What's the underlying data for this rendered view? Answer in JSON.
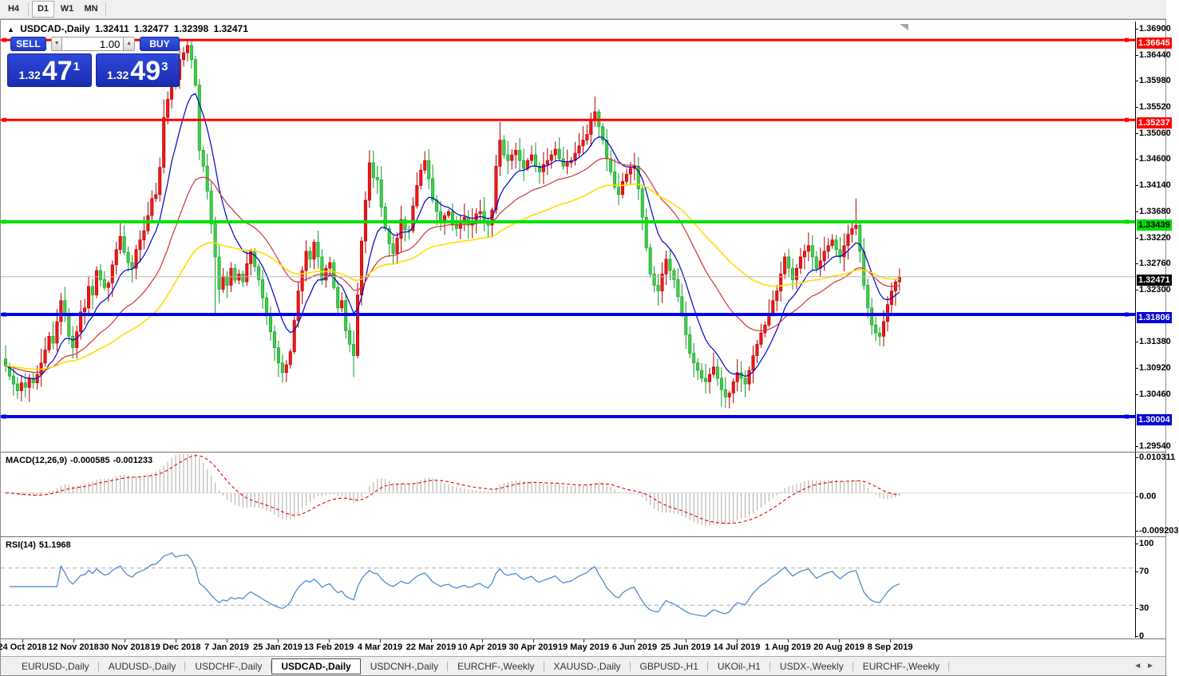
{
  "toolbar": {
    "timeframes": [
      {
        "label": "H4",
        "active": false
      },
      {
        "label": "D1",
        "active": true
      },
      {
        "label": "W1",
        "active": false
      },
      {
        "label": "MN",
        "active": false
      }
    ]
  },
  "icons": {
    "collapse": "▲",
    "spinner_down": "▼",
    "spinner_up": "▲",
    "nav_left": "◄",
    "nav_right": "►"
  },
  "chart_title": {
    "symbol": "USDCAD-,Daily",
    "open": "1.32411",
    "high": "1.32477",
    "low": "1.32398",
    "close": "1.32471"
  },
  "order_panel": {
    "sell_label": "SELL",
    "buy_label": "BUY",
    "volume": "1.00",
    "sell_price": {
      "prefix": "1.32",
      "big": "47",
      "sup": "1"
    },
    "buy_price": {
      "prefix": "1.32",
      "big": "49",
      "sup": "3"
    }
  },
  "price_axis": {
    "labels": [
      "1.36900",
      "1.36440",
      "1.35980",
      "1.35520",
      "1.35060",
      "1.34600",
      "1.34140",
      "1.33680",
      "1.33220",
      "1.32760",
      "1.32300",
      "1.31380",
      "1.30920",
      "1.30460",
      "1.29540"
    ],
    "special": [
      {
        "value": "1.36645",
        "price": 1.36645,
        "bg": "#FF0000",
        "fg": "#FFFFFF"
      },
      {
        "value": "1.35237",
        "price": 1.35237,
        "bg": "#FF0000",
        "fg": "#FFFFFF"
      },
      {
        "value": "1.33439",
        "price": 1.33439,
        "bg": "#00DC00",
        "fg": "#000000"
      },
      {
        "value": "1.32471",
        "price": 1.32471,
        "bg": "#000000",
        "fg": "#FFFFFF"
      },
      {
        "value": "1.31806",
        "price": 1.31806,
        "bg": "#0000D8",
        "fg": "#FFFFFF"
      },
      {
        "value": "1.30004",
        "price": 1.30004,
        "bg": "#0000D8",
        "fg": "#FFFFFF"
      }
    ]
  },
  "levels": [
    {
      "price": 1.36645,
      "color": "#FF0000",
      "width": 3,
      "handles": true
    },
    {
      "price": 1.35237,
      "color": "#FF0000",
      "width": 3,
      "handles": true
    },
    {
      "price": 1.33439,
      "color": "#00E000",
      "width": 4,
      "handles": true
    },
    {
      "price": 1.31806,
      "color": "#0000E8",
      "width": 4,
      "handles": true
    },
    {
      "price": 1.30004,
      "color": "#0000E8",
      "width": 4,
      "handles": true
    },
    {
      "price": 1.32471,
      "color": "#B8B8B8",
      "width": 1,
      "handles": false
    }
  ],
  "chart_data": {
    "type": "candlestick",
    "symbol": "USDCAD-",
    "timeframe": "Daily",
    "price_range": {
      "top": 1.369,
      "bottom": 1.2954
    },
    "up_color": "#F21515",
    "up_border": "#B00000",
    "down_color": "#3FCE45",
    "down_border": "#109928",
    "moving_averages": [
      {
        "period": 10,
        "color": "#0000C8"
      },
      {
        "period": 30,
        "color": "#D23434"
      },
      {
        "period": 65,
        "color": "#FFDD00"
      }
    ],
    "x_labels": [
      "24 Oct 2018",
      "12 Nov 2018",
      "30 Nov 2018",
      "19 Dec 2018",
      "7 Jan 2019",
      "25 Jan 2019",
      "13 Feb 2019",
      "4 Mar 2019",
      "22 Mar 2019",
      "10 Apr 2019",
      "30 Apr 2019",
      "19 May 2019",
      "6 Jun 2019",
      "25 Jun 2019",
      "14 Jul 2019",
      "1 Aug 2019",
      "20 Aug 2019",
      "8 Sep 2019"
    ],
    "closes": [
      1.309,
      1.3072,
      1.3058,
      1.3046,
      1.306,
      1.3052,
      1.3068,
      1.306,
      1.3075,
      1.3095,
      1.3118,
      1.3142,
      1.313,
      1.3168,
      1.3205,
      1.3178,
      1.3142,
      1.3122,
      1.315,
      1.3185,
      1.3192,
      1.323,
      1.3215,
      1.3258,
      1.3242,
      1.3228,
      1.3236,
      1.3268,
      1.3295,
      1.3318,
      1.329,
      1.3272,
      1.3262,
      1.3295,
      1.3312,
      1.3328,
      1.3355,
      1.3385,
      1.3392,
      1.344,
      1.3528,
      1.356,
      1.3618,
      1.3595,
      1.363,
      1.3642,
      1.3655,
      1.363,
      1.3585,
      1.347,
      1.3442,
      1.3398,
      1.334,
      1.3282,
      1.3225,
      1.3248,
      1.3232,
      1.3262,
      1.3241,
      1.3252,
      1.3238,
      1.327,
      1.3292,
      1.3265,
      1.3242,
      1.321,
      1.3182,
      1.315,
      1.3122,
      1.3095,
      1.3078,
      1.3092,
      1.3115,
      1.317,
      1.3222,
      1.3258,
      1.3292,
      1.3278,
      1.3308,
      1.3282,
      1.3241,
      1.3262,
      1.3272,
      1.3228,
      1.3192,
      1.3205,
      1.3152,
      1.3128,
      1.3108,
      1.3215,
      1.331,
      1.3382,
      1.3448,
      1.3422,
      1.3418,
      1.337,
      1.3332,
      1.3305,
      1.3288,
      1.3315,
      1.3348,
      1.333,
      1.3328,
      1.3372,
      1.3408,
      1.3435,
      1.3452,
      1.342,
      1.3382,
      1.3362,
      1.3342,
      1.3355,
      1.3362,
      1.334,
      1.3332,
      1.3342,
      1.3352,
      1.3338,
      1.3342,
      1.3358,
      1.3362,
      1.3345,
      1.3338,
      1.3365,
      1.3442,
      1.3488,
      1.3462,
      1.3452,
      1.3462,
      1.347,
      1.3452,
      1.3438,
      1.3452,
      1.3462,
      1.3442,
      1.3432,
      1.3445,
      1.3452,
      1.3462,
      1.3472,
      1.3455,
      1.3442,
      1.3448,
      1.3452,
      1.3465,
      1.3478,
      1.3488,
      1.3498,
      1.3522,
      1.3538,
      1.3512,
      1.3488,
      1.3455,
      1.3432,
      1.3405,
      1.3392,
      1.3415,
      1.3428,
      1.3438,
      1.3442,
      1.3402,
      1.3352,
      1.3298,
      1.3252,
      1.3232,
      1.3222,
      1.3252,
      1.3278,
      1.3258,
      1.3242,
      1.3212,
      1.3182,
      1.3145,
      1.3112,
      1.3095,
      1.3082,
      1.3068,
      1.3062,
      1.3075,
      1.3088,
      1.3068,
      1.3048,
      1.3035,
      1.3042,
      1.3062,
      1.3078,
      1.3068,
      1.3058,
      1.3082,
      1.3108,
      1.3128,
      1.3148,
      1.3162,
      1.3182,
      1.3205,
      1.3222,
      1.3252,
      1.3282,
      1.3262,
      1.3242,
      1.3262,
      1.3282,
      1.3292,
      1.3302,
      1.3282,
      1.3262,
      1.3275,
      1.3292,
      1.3302,
      1.3312,
      1.3295,
      1.3282,
      1.3302,
      1.3322,
      1.3332,
      1.3338,
      1.3292,
      1.3232,
      1.3192,
      1.3162,
      1.3148,
      1.3142,
      1.3168,
      1.3198,
      1.3222,
      1.3238,
      1.3247
    ],
    "wick_overrides": {
      "3": {
        "l": 1.3032
      },
      "40": {
        "h": 1.356
      },
      "46": {
        "h": 1.36645
      },
      "53": {
        "l": 1.318
      },
      "70": {
        "l": 1.306
      },
      "88": {
        "l": 1.307
      },
      "92": {
        "h": 1.347
      },
      "125": {
        "h": 1.352
      },
      "149": {
        "h": 1.3565
      },
      "181": {
        "l": 1.3018
      },
      "183": {
        "l": 1.3015
      },
      "215": {
        "h": 1.3385
      },
      "221": {
        "l": 1.3125
      }
    }
  },
  "macd_panel": {
    "label": "MACD(12,26,9)",
    "value1": "-0.000585",
    "value2": "-0.001233",
    "axis": [
      {
        "value": "0.010311",
        "v": 0.010311
      },
      {
        "value": "0.00",
        "v": 0
      },
      {
        "value": "-0.009203",
        "v": -0.009203
      }
    ],
    "range": {
      "top": 0.010311,
      "bottom": -0.009203
    },
    "fast": 12,
    "slow": 26,
    "signal": 9,
    "histogram_color": "#ABABAB",
    "signal_color": "#E00000"
  },
  "rsi_panel": {
    "label": "RSI(14)",
    "value": "51.1968",
    "period": 14,
    "axis": [
      {
        "value": "100",
        "v": 100
      },
      {
        "value": "70",
        "v": 70
      },
      {
        "value": "30",
        "v": 30
      },
      {
        "value": "0",
        "v": 0
      }
    ],
    "dashed_levels": [
      70,
      30
    ],
    "line_color": "#4285CC",
    "level_color": "#ABABAB"
  },
  "bottom_tabs": {
    "tabs": [
      {
        "label": "EURUSD-,Daily",
        "active": false
      },
      {
        "label": "AUDUSD-,Daily",
        "active": false
      },
      {
        "label": "USDCHF-,Daily",
        "active": false
      },
      {
        "label": "USDCAD-,Daily",
        "active": true
      },
      {
        "label": "USDCNH-,Daily",
        "active": false
      },
      {
        "label": "EURCHF-,Weekly",
        "active": false
      },
      {
        "label": "XAUUSD-,Daily",
        "active": false
      },
      {
        "label": "GBPUSD-,H1",
        "active": false
      },
      {
        "label": "UKOil-,H1",
        "active": false
      },
      {
        "label": "USDX-,Weekly",
        "active": false
      },
      {
        "label": "EURCHF-,Weekly",
        "active": false
      }
    ]
  }
}
